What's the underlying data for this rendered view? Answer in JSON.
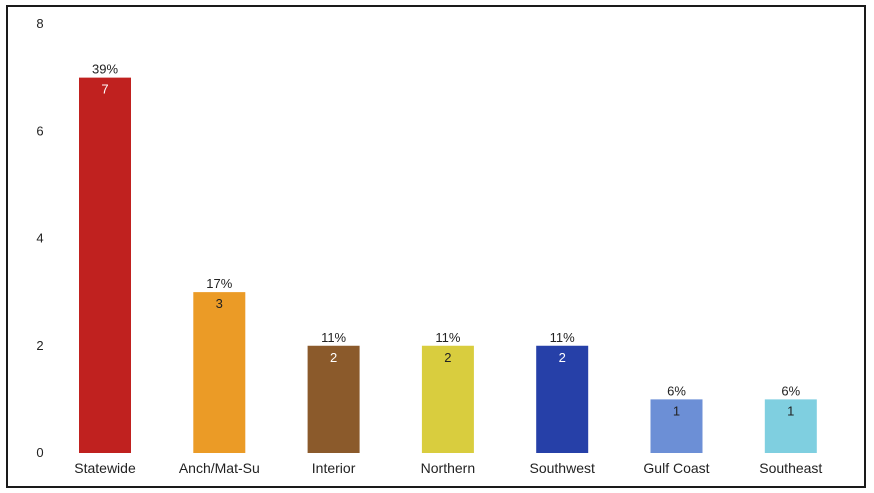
{
  "chart_data": {
    "type": "bar",
    "categories": [
      "Statewide",
      "Anch/Mat-Su",
      "Interior",
      "Northern",
      "Southwest",
      "Gulf Coast",
      "Southeast"
    ],
    "values": [
      7,
      3,
      2,
      2,
      2,
      1,
      1
    ],
    "percent_labels": [
      "39%",
      "17%",
      "11%",
      "11%",
      "11%",
      "6%",
      "6%"
    ],
    "value_labels": [
      "7",
      "3",
      "2",
      "2",
      "2",
      "1",
      "1"
    ],
    "colors": [
      "#c0211f",
      "#eb9b26",
      "#8b5a2b",
      "#d9cd3e",
      "#2640a8",
      "#6c8fd6",
      "#7fcfe0"
    ],
    "value_label_colors": [
      "#ffffff",
      "#222222",
      "#ffffff",
      "#222222",
      "#ffffff",
      "#222222",
      "#222222"
    ],
    "yticks": [
      "0",
      "2",
      "4",
      "6",
      "8"
    ],
    "ylim": [
      0,
      8
    ],
    "grid": false
  }
}
